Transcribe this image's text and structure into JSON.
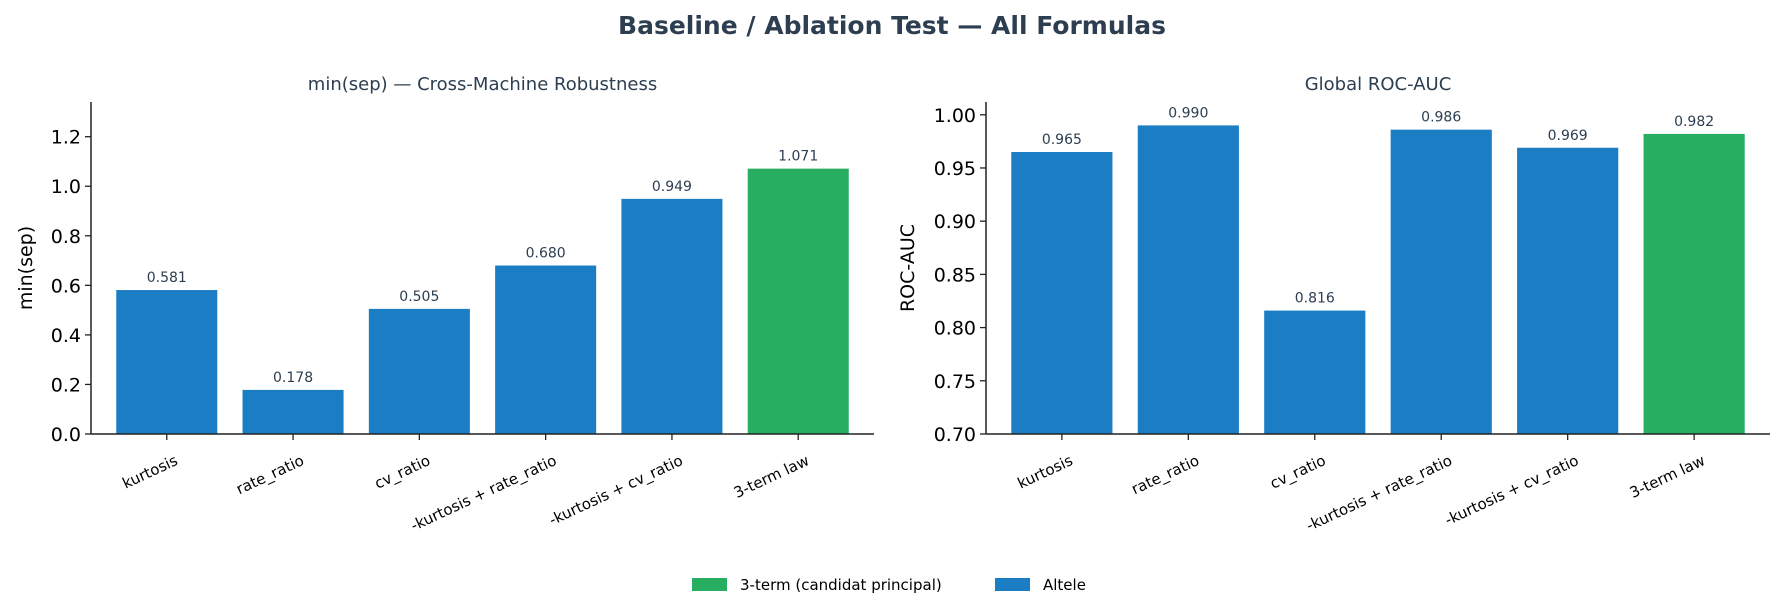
{
  "title": "Baseline / Ablation Test — All Formulas",
  "colors": {
    "primary": "#27ae60",
    "other": "#1b7dc3",
    "title": "#2c3e50",
    "label": "#2c3e50"
  },
  "legend": {
    "placement": "bottom-center",
    "entries": [
      {
        "label": "3-term (candidat principal)",
        "color": "#27ae60"
      },
      {
        "label": "Altele",
        "color": "#1b7dc3"
      }
    ]
  },
  "chart_data": [
    {
      "type": "bar",
      "title": "min(sep) — Cross-Machine Robustness",
      "xlabel": "",
      "ylabel": "min(sep)",
      "categories": [
        "kurtosis",
        "rate_ratio",
        "cv_ratio",
        "-kurtosis + rate_ratio",
        "-kurtosis + cv_ratio",
        "3-term law"
      ],
      "values": [
        0.581,
        0.178,
        0.505,
        0.68,
        0.949,
        1.071
      ],
      "data_labels": [
        "0.581",
        "0.178",
        "0.505",
        "0.680",
        "0.949",
        "1.071"
      ],
      "highlight": [
        false,
        false,
        false,
        false,
        false,
        true
      ],
      "ylim": [
        0,
        1.34
      ],
      "yticks": [
        0.0,
        0.2,
        0.4,
        0.6,
        0.8,
        1.0,
        1.2
      ],
      "ytick_labels": [
        "0.0",
        "0.2",
        "0.4",
        "0.6",
        "0.8",
        "1.0",
        "1.2"
      ],
      "grid": false
    },
    {
      "type": "bar",
      "title": "Global ROC-AUC",
      "xlabel": "",
      "ylabel": "ROC-AUC",
      "categories": [
        "kurtosis",
        "rate_ratio",
        "cv_ratio",
        "-kurtosis + rate_ratio",
        "-kurtosis + cv_ratio",
        "3-term law"
      ],
      "values": [
        0.965,
        0.99,
        0.816,
        0.986,
        0.969,
        0.982
      ],
      "data_labels": [
        "0.965",
        "0.990",
        "0.816",
        "0.986",
        "0.969",
        "0.982"
      ],
      "highlight": [
        false,
        false,
        false,
        false,
        false,
        true
      ],
      "ylim": [
        0.7,
        1.012
      ],
      "yticks": [
        0.7,
        0.75,
        0.8,
        0.85,
        0.9,
        0.95,
        1.0
      ],
      "ytick_labels": [
        "0.70",
        "0.75",
        "0.80",
        "0.85",
        "0.90",
        "0.95",
        "1.00"
      ],
      "grid": false
    }
  ]
}
